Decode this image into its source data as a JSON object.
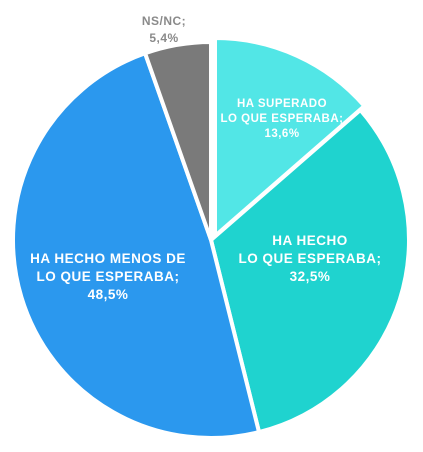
{
  "chart_data": {
    "type": "pie",
    "colors": {
      "ha_superado": "#52e6e6",
      "ha_hecho": "#1fd3cf",
      "menos": "#2b98ee",
      "nsnc": "#7a7a7a",
      "label_light": "#ffffff",
      "label_dark": "#8a8a8a"
    },
    "slices": [
      {
        "key": "ha_superado",
        "label_lines": [
          "HA SUPERADO",
          "LO QUE ESPERABA;",
          "13,6%"
        ],
        "value": 13.6
      },
      {
        "key": "ha_hecho",
        "label_lines": [
          "HA HECHO",
          "LO QUE ESPERABA;",
          "32,5%"
        ],
        "value": 32.5
      },
      {
        "key": "menos",
        "label_lines": [
          "HA HECHO MENOS DE",
          "LO QUE ESPERABA;",
          "48,5%"
        ],
        "value": 48.5
      },
      {
        "key": "nsnc",
        "label_lines": [
          "NS/NC;",
          "5,4%"
        ],
        "value": 5.4
      }
    ]
  }
}
